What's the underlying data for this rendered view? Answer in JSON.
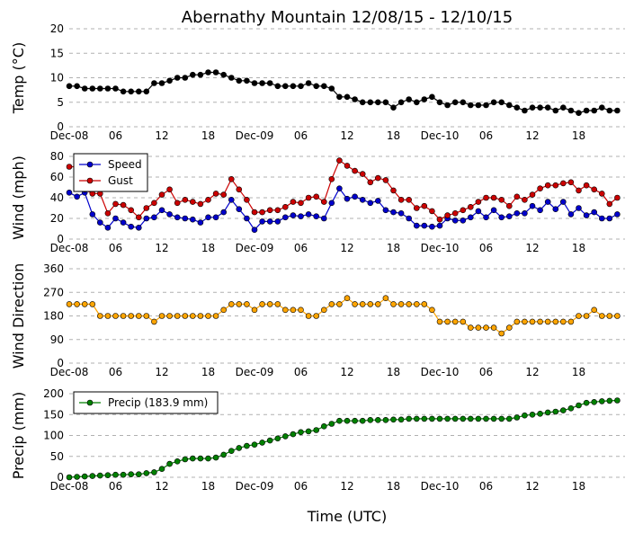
{
  "chart_data": {
    "type": "line",
    "title": "Abernathy Mountain 12/08/15 - 12/10/15",
    "xlabel": "Time (UTC)",
    "x_range": [
      0,
      72
    ],
    "x_ticks": [
      {
        "x": 0,
        "label": "Dec-08"
      },
      {
        "x": 6,
        "label": "06"
      },
      {
        "x": 12,
        "label": "12"
      },
      {
        "x": 18,
        "label": "18"
      },
      {
        "x": 24,
        "label": "Dec-09"
      },
      {
        "x": 30,
        "label": "06"
      },
      {
        "x": 36,
        "label": "12"
      },
      {
        "x": 42,
        "label": "18"
      },
      {
        "x": 48,
        "label": "Dec-10"
      },
      {
        "x": 54,
        "label": "06"
      },
      {
        "x": 60,
        "label": "12"
      },
      {
        "x": 66,
        "label": "18"
      }
    ],
    "grid": true,
    "panels": [
      {
        "id": "temp",
        "ylabel": "Temp (°C)",
        "ylim": [
          0,
          20
        ],
        "yticks": [
          0,
          5,
          10,
          15,
          20
        ],
        "legend": null,
        "series": [
          {
            "color": "#000000",
            "values": [
              8.3,
              8.3,
              7.8,
              7.8,
              7.8,
              7.8,
              7.8,
              7.2,
              7.2,
              7.2,
              7.2,
              8.9,
              8.9,
              9.4,
              10,
              10,
              10.6,
              10.6,
              11.1,
              11.1,
              10.6,
              10,
              9.4,
              9.4,
              8.9,
              8.9,
              8.9,
              8.3,
              8.3,
              8.3,
              8.3,
              8.9,
              8.3,
              8.3,
              7.8,
              6.1,
              6.1,
              5.6,
              5,
              5,
              5,
              5,
              3.9,
              5,
              5.6,
              5,
              5.6,
              6.1,
              5,
              4.4,
              5,
              5,
              4.4,
              4.4,
              4.4,
              5,
              5,
              4.4,
              3.9,
              3.3,
              3.9,
              3.9,
              3.9,
              3.3,
              3.9,
              3.3,
              2.8,
              3.3,
              3.3,
              3.9,
              3.3,
              3.3
            ]
          }
        ]
      },
      {
        "id": "wind",
        "ylabel": "Wind (mph)",
        "ylim": [
          0,
          80
        ],
        "yticks": [
          0,
          20,
          40,
          60,
          80
        ],
        "legend": {
          "position": "upper-left",
          "entries": [
            "Speed",
            "Gust"
          ]
        },
        "series": [
          {
            "name": "Speed",
            "color": "#0000cc",
            "values": [
              45,
              41,
              45,
              24,
              16,
              11,
              20,
              16,
              12,
              11,
              20,
              21,
              28,
              24,
              21,
              20,
              19,
              16,
              21,
              21,
              26,
              38,
              29,
              20,
              9,
              17,
              17,
              17,
              21,
              23,
              22,
              24,
              22,
              20,
              35,
              49,
              39,
              41,
              38,
              35,
              37,
              28,
              26,
              25,
              20,
              13,
              13,
              12,
              13,
              20,
              18,
              18,
              21,
              27,
              21,
              28,
              21,
              22,
              25,
              25,
              32,
              28,
              36,
              29,
              36,
              24,
              30,
              23,
              26,
              20,
              20,
              24
            ]
          },
          {
            "name": "Gust",
            "color": "#cc0000",
            "values": [
              70,
              70,
              48,
              44,
              44,
              25,
              34,
              33,
              28,
              21,
              30,
              35,
              43,
              48,
              35,
              38,
              36,
              34,
              38,
              44,
              43,
              58,
              48,
              38,
              26,
              26,
              28,
              28,
              31,
              36,
              35,
              40,
              41,
              36,
              58,
              76,
              71,
              66,
              63,
              55,
              59,
              57,
              47,
              38,
              38,
              30,
              32,
              27,
              19,
              23,
              25,
              28,
              31,
              36,
              40,
              40,
              38,
              32,
              41,
              38,
              43,
              49,
              52,
              52,
              54,
              55,
              47,
              52,
              48,
              44,
              34,
              40
            ]
          }
        ]
      },
      {
        "id": "direction",
        "ylabel": "Wind Direction",
        "ylim": [
          0,
          360
        ],
        "yticks": [
          0,
          90,
          180,
          270,
          360
        ],
        "legend": null,
        "series": [
          {
            "color": "#ffa500",
            "values": [
              225,
              225,
              225,
              225,
              180,
              180,
              180,
              180,
              180,
              180,
              180,
              158,
              180,
              180,
              180,
              180,
              180,
              180,
              180,
              180,
              203,
              225,
              225,
              225,
              203,
              225,
              225,
              225,
              203,
              203,
              203,
              180,
              180,
              203,
              225,
              225,
              248,
              225,
              225,
              225,
              225,
              248,
              225,
              225,
              225,
              225,
              225,
              203,
              158,
              158,
              158,
              158,
              135,
              135,
              135,
              135,
              113,
              135,
              158,
              158,
              158,
              158,
              158,
              158,
              158,
              158,
              180,
              180,
              203,
              180,
              180,
              180
            ]
          }
        ]
      },
      {
        "id": "precip",
        "ylabel": "Precip (mm)",
        "ylim": [
          0,
          200
        ],
        "yticks": [
          0,
          50,
          100,
          150,
          200
        ],
        "legend": {
          "position": "upper-left",
          "entries": [
            "Precip (183.9 mm)"
          ]
        },
        "series": [
          {
            "name": "Precip (183.9 mm)",
            "color": "#008000",
            "values": [
              0,
              1,
              2,
              3,
              4,
              5,
              6,
              6,
              7,
              7,
              10,
              12,
              20,
              32,
              38,
              43,
              45,
              45,
              45,
              47,
              54,
              63,
              70,
              75,
              78,
              83,
              88,
              93,
              98,
              103,
              108,
              110,
              113,
              122,
              128,
              135,
              135,
              135,
              135,
              137,
              137,
              137,
              138,
              138,
              140,
              140,
              140,
              140,
              140,
              140,
              140,
              140,
              140,
              140,
              140,
              140,
              140,
              140,
              143,
              148,
              150,
              152,
              155,
              157,
              160,
              165,
              172,
              178,
              180,
              182,
              183,
              183.9
            ]
          }
        ]
      }
    ]
  }
}
